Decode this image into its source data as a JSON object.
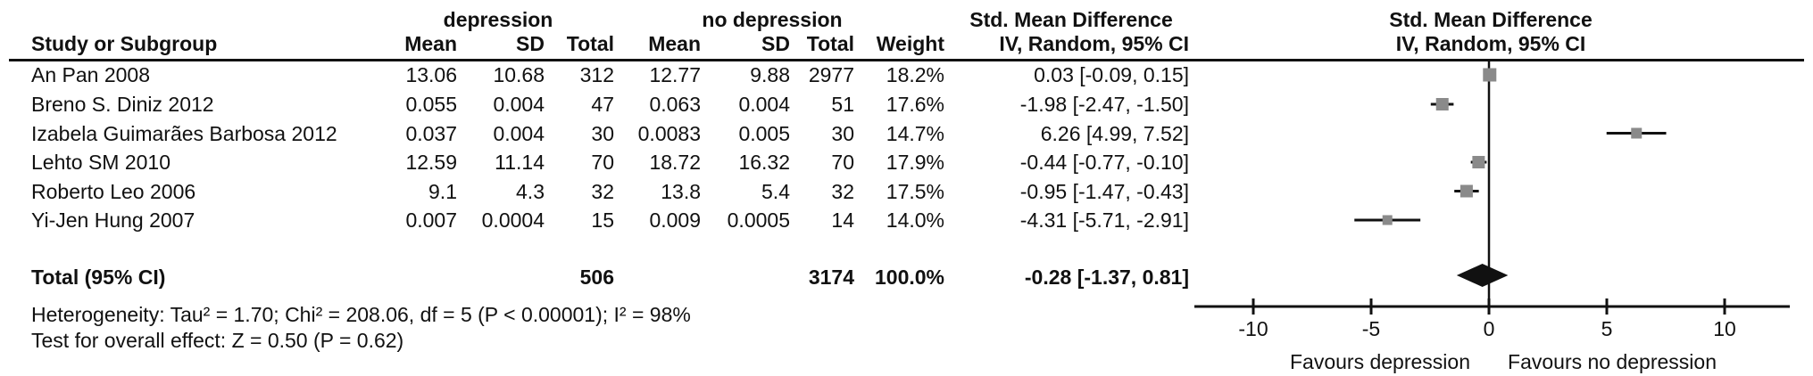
{
  "figure": {
    "group1_header": "depression",
    "group2_header": "no depression",
    "smd_col_header_line1": "Std. Mean Difference",
    "smd_col_header_line2": "IV, Random, 95% CI",
    "plot_header_line1": "Std. Mean Difference",
    "plot_header_line2": "IV, Random, 95% CI",
    "col_headers": {
      "study": "Study or Subgroup",
      "mean": "Mean",
      "sd": "SD",
      "total": "Total",
      "weight": "Weight"
    },
    "rows": [
      {
        "study": "An Pan 2008",
        "mean1": "13.06",
        "sd1": "10.68",
        "total1": "312",
        "mean2": "12.77",
        "sd2": "9.88",
        "total2": "2977",
        "weight": "18.2%",
        "smd": "0.03 [-0.09, 0.15]"
      },
      {
        "study": "Breno S. Diniz 2012",
        "mean1": "0.055",
        "sd1": "0.004",
        "total1": "47",
        "mean2": "0.063",
        "sd2": "0.004",
        "total2": "51",
        "weight": "17.6%",
        "smd": "-1.98 [-2.47, -1.50]"
      },
      {
        "study": "Izabela Guimarães Barbosa 2012",
        "mean1": "0.037",
        "sd1": "0.004",
        "total1": "30",
        "mean2": "0.0083",
        "sd2": "0.005",
        "total2": "30",
        "weight": "14.7%",
        "smd": "6.26 [4.99, 7.52]"
      },
      {
        "study": "Lehto SM 2010",
        "mean1": "12.59",
        "sd1": "11.14",
        "total1": "70",
        "mean2": "18.72",
        "sd2": "16.32",
        "total2": "70",
        "weight": "17.9%",
        "smd": "-0.44 [-0.77, -0.10]"
      },
      {
        "study": "Roberto Leo 2006",
        "mean1": "9.1",
        "sd1": "4.3",
        "total1": "32",
        "mean2": "13.8",
        "sd2": "5.4",
        "total2": "32",
        "weight": "17.5%",
        "smd": "-0.95 [-1.47, -0.43]"
      },
      {
        "study": "Yi-Jen Hung 2007",
        "mean1": "0.007",
        "sd1": "0.0004",
        "total1": "15",
        "mean2": "0.009",
        "sd2": "0.0005",
        "total2": "14",
        "weight": "14.0%",
        "smd": "-4.31 [-5.71, -2.91]"
      }
    ],
    "total_row": {
      "label": "Total (95% CI)",
      "total1": "506",
      "total2": "3174",
      "weight": "100.0%",
      "smd": "-0.28 [-1.37, 0.81]"
    },
    "heterogeneity": "Heterogeneity: Tau² = 1.70; Chi² = 208.06, df = 5 (P < 0.00001); I² = 98%",
    "overall_effect": "Test for overall effect: Z = 0.50 (P = 0.62)",
    "favours_left": "Favours depression",
    "favours_right": "Favours no depression"
  },
  "colors": {
    "text": "#111111",
    "marker": "#8a8a8a",
    "line": "#111111",
    "diamond": "#111111"
  },
  "chart_data": {
    "type": "forest",
    "effect_measure": "Std. Mean Difference",
    "model": "IV, Random, 95% CI",
    "xticks": [
      -10,
      -5,
      0,
      5,
      10
    ],
    "xlim": [
      -12.5,
      12.8
    ],
    "x_axis_labels": {
      "left": "Favours depression",
      "right": "Favours no depression"
    },
    "studies": [
      {
        "name": "An Pan 2008",
        "mean_dep": 13.06,
        "sd_dep": 10.68,
        "n_dep": 312,
        "mean_nodep": 12.77,
        "sd_nodep": 9.88,
        "n_nodep": 2977,
        "weight_pct": 18.2,
        "smd": 0.03,
        "ci_low": -0.09,
        "ci_high": 0.15
      },
      {
        "name": "Breno S. Diniz 2012",
        "mean_dep": 0.055,
        "sd_dep": 0.004,
        "n_dep": 47,
        "mean_nodep": 0.063,
        "sd_nodep": 0.004,
        "n_nodep": 51,
        "weight_pct": 17.6,
        "smd": -1.98,
        "ci_low": -2.47,
        "ci_high": -1.5
      },
      {
        "name": "Izabela Guimarães Barbosa 2012",
        "mean_dep": 0.037,
        "sd_dep": 0.004,
        "n_dep": 30,
        "mean_nodep": 0.0083,
        "sd_nodep": 0.005,
        "n_nodep": 30,
        "weight_pct": 14.7,
        "smd": 6.26,
        "ci_low": 4.99,
        "ci_high": 7.52
      },
      {
        "name": "Lehto SM 2010",
        "mean_dep": 12.59,
        "sd_dep": 11.14,
        "n_dep": 70,
        "mean_nodep": 18.72,
        "sd_nodep": 16.32,
        "n_nodep": 70,
        "weight_pct": 17.9,
        "smd": -0.44,
        "ci_low": -0.77,
        "ci_high": -0.1
      },
      {
        "name": "Roberto Leo 2006",
        "mean_dep": 9.1,
        "sd_dep": 4.3,
        "n_dep": 32,
        "mean_nodep": 13.8,
        "sd_nodep": 5.4,
        "n_nodep": 32,
        "weight_pct": 17.5,
        "smd": -0.95,
        "ci_low": -1.47,
        "ci_high": -0.43
      },
      {
        "name": "Yi-Jen Hung 2007",
        "mean_dep": 0.007,
        "sd_dep": 0.0004,
        "n_dep": 15,
        "mean_nodep": 0.009,
        "sd_nodep": 0.0005,
        "n_nodep": 14,
        "weight_pct": 14.0,
        "smd": -4.31,
        "ci_low": -5.71,
        "ci_high": -2.91
      }
    ],
    "total": {
      "label": "Total (95% CI)",
      "n_dep": 506,
      "n_nodep": 3174,
      "weight_pct": 100.0,
      "smd": -0.28,
      "ci_low": -1.37,
      "ci_high": 0.81
    },
    "heterogeneity": {
      "tau2": 1.7,
      "chi2": 208.06,
      "df": 5,
      "p": "< 0.00001",
      "i2_pct": 98
    },
    "overall_effect": {
      "z": 0.5,
      "p": 0.62
    }
  }
}
